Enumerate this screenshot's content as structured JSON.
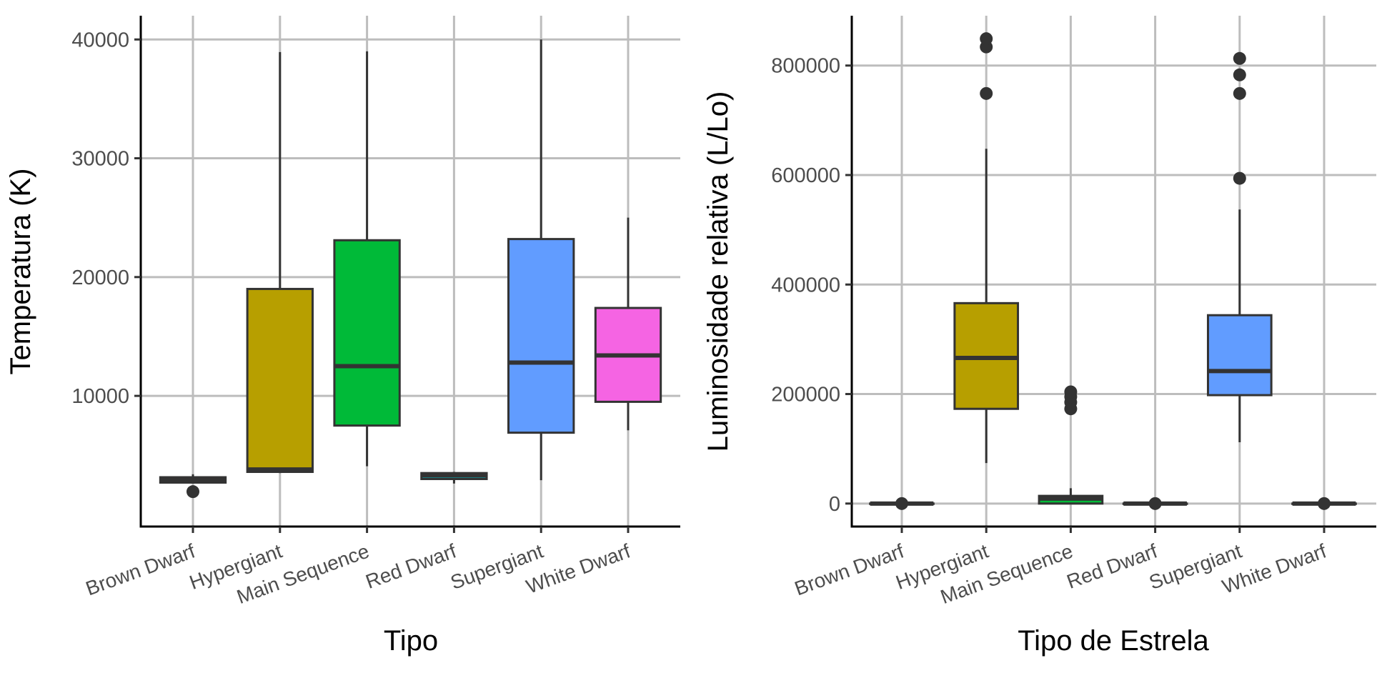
{
  "chart_data": [
    {
      "type": "box",
      "xlabel": "Tipo",
      "ylabel": "Temperatura (K)",
      "categories": [
        "Brown Dwarf",
        "Hypergiant",
        "Main Sequence",
        "Red Dwarf",
        "Supergiant",
        "White Dwarf"
      ],
      "yticks": [
        10000,
        20000,
        30000,
        40000
      ],
      "ylim": [
        -1000,
        42000
      ],
      "grid": true,
      "boxes": [
        {
          "category": "Brown Dwarf",
          "color": "#F8766D",
          "min": 2650,
          "q1": 2700,
          "median": 2900,
          "q3": 3150,
          "max": 3400,
          "outliers": [
            1939
          ]
        },
        {
          "category": "Hypergiant",
          "color": "#B79F00",
          "min": 3500,
          "q1": 3600,
          "median": 3800,
          "q3": 19000,
          "max": 38940,
          "outliers": []
        },
        {
          "category": "Main Sequence",
          "color": "#00BA38",
          "min": 4077,
          "q1": 7500,
          "median": 12500,
          "q3": 23100,
          "max": 39000,
          "outliers": []
        },
        {
          "category": "Red Dwarf",
          "color": "#00BFC4",
          "min": 2621,
          "q1": 3000,
          "median": 3300,
          "q3": 3500,
          "max": 3600,
          "outliers": []
        },
        {
          "category": "Supergiant",
          "color": "#619CFF",
          "min": 2900,
          "q1": 6900,
          "median": 12800,
          "q3": 23200,
          "max": 40000,
          "outliers": []
        },
        {
          "category": "White Dwarf",
          "color": "#F564E3",
          "min": 7100,
          "q1": 9500,
          "median": 13400,
          "q3": 17400,
          "max": 25000,
          "outliers": []
        }
      ]
    },
    {
      "type": "box",
      "xlabel": "Tipo de Estrela",
      "ylabel": "Luminosidade relativa (L/Lo)",
      "categories": [
        "Brown Dwarf",
        "Hypergiant",
        "Main Sequence",
        "Red Dwarf",
        "Supergiant",
        "White Dwarf"
      ],
      "yticks": [
        0,
        200000,
        400000,
        600000,
        800000
      ],
      "ylim": [
        -42000,
        891000
      ],
      "grid": true,
      "boxes": [
        {
          "category": "Brown Dwarf",
          "color": "#F8766D",
          "min": 0,
          "q1": 0,
          "median": 0,
          "q3": 0,
          "max": 0,
          "outliers": [
            0
          ]
        },
        {
          "category": "Hypergiant",
          "color": "#B79F00",
          "min": 74000,
          "q1": 173000,
          "median": 266000,
          "q3": 366000,
          "max": 648000,
          "outliers": [
            749000,
            834000,
            849000
          ]
        },
        {
          "category": "Main Sequence",
          "color": "#00BA38",
          "min": 0,
          "q1": 0,
          "median": 9000,
          "q3": 14000,
          "max": 28000,
          "outliers": [
            173000,
            185000,
            195000,
            204000
          ]
        },
        {
          "category": "Red Dwarf",
          "color": "#00BFC4",
          "min": 0,
          "q1": 0,
          "median": 0,
          "q3": 0,
          "max": 0,
          "outliers": [
            0
          ]
        },
        {
          "category": "Supergiant",
          "color": "#619CFF",
          "min": 112000,
          "q1": 198000,
          "median": 242000,
          "q3": 344000,
          "max": 537000,
          "outliers": [
            594000,
            749000,
            783000,
            813000
          ]
        },
        {
          "category": "White Dwarf",
          "color": "#F564E3",
          "min": 0,
          "q1": 0,
          "median": 0,
          "q3": 0,
          "max": 0,
          "outliers": [
            0
          ]
        }
      ]
    }
  ]
}
